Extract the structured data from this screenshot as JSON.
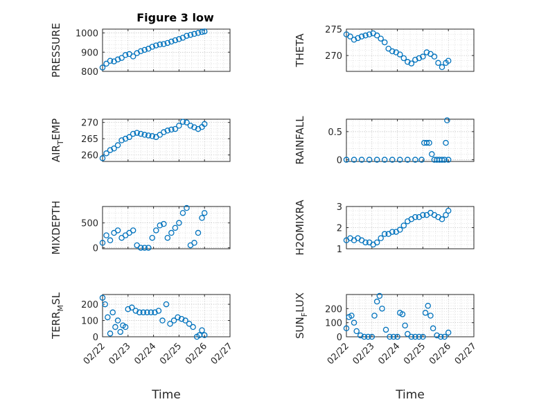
{
  "figure_title": "Figure 3 low",
  "colors": {
    "marker": "#0072BD",
    "axis": "#262626",
    "grid": "#b0b0b0"
  },
  "chart_data": [
    {
      "type": "scatter",
      "id": "pressure",
      "ylabel": "PRESSURE",
      "ylabel_base": "PRESSURE",
      "ylabel_sub": "",
      "ylabel_rest": "",
      "title": "Figure 3 low",
      "xlim": [
        0,
        5
      ],
      "ylim": [
        800,
        1020
      ],
      "yticks": [
        800,
        900,
        1000
      ],
      "ytick_labels": [
        "800",
        "900",
        "1000"
      ],
      "xtick_labels": [],
      "xlabel": "",
      "x": [
        0.0,
        0.15,
        0.3,
        0.45,
        0.6,
        0.75,
        0.9,
        1.05,
        1.2,
        1.35,
        1.5,
        1.65,
        1.8,
        1.95,
        2.1,
        2.25,
        2.4,
        2.55,
        2.7,
        2.85,
        3.0,
        3.15,
        3.3,
        3.45,
        3.6,
        3.75,
        3.9,
        4.0
      ],
      "y": [
        820,
        840,
        855,
        852,
        862,
        870,
        885,
        890,
        878,
        895,
        905,
        912,
        918,
        928,
        935,
        940,
        942,
        948,
        955,
        962,
        968,
        975,
        985,
        990,
        995,
        1000,
        1005,
        1008
      ]
    },
    {
      "type": "scatter",
      "id": "theta",
      "ylabel": "THETA",
      "ylabel_base": "THETA",
      "ylabel_sub": "",
      "ylabel_rest": "",
      "xlim": [
        0,
        5
      ],
      "ylim": [
        267,
        275
      ],
      "yticks": [
        270,
        275
      ],
      "ytick_labels": [
        "270",
        "275"
      ],
      "xtick_labels": [],
      "xlabel": "",
      "x": [
        0.0,
        0.15,
        0.3,
        0.45,
        0.6,
        0.75,
        0.9,
        1.05,
        1.2,
        1.35,
        1.5,
        1.65,
        1.8,
        1.95,
        2.1,
        2.25,
        2.4,
        2.55,
        2.7,
        2.85,
        3.0,
        3.15,
        3.3,
        3.45,
        3.6,
        3.75,
        3.9,
        4.0
      ],
      "y": [
        274,
        273.6,
        273,
        273.3,
        273.6,
        273.8,
        274,
        274.2,
        273.8,
        273.2,
        272.5,
        271.3,
        270.8,
        270.6,
        270.2,
        269.5,
        268.8,
        268.5,
        269.2,
        269.5,
        269.8,
        270.6,
        270.3,
        269.8,
        268.6,
        267.8,
        268.6,
        269
      ]
    },
    {
      "type": "scatter",
      "id": "air_temp",
      "ylabel": "AIR_TEMP",
      "ylabel_base": "AIR",
      "ylabel_sub": "T",
      "ylabel_rest": "EMP",
      "xlim": [
        0,
        5
      ],
      "ylim": [
        258,
        271
      ],
      "yticks": [
        260,
        265,
        270
      ],
      "ytick_labels": [
        "260",
        "265",
        "270"
      ],
      "xtick_labels": [],
      "xlabel": "",
      "x": [
        0.0,
        0.15,
        0.3,
        0.45,
        0.6,
        0.75,
        0.9,
        1.05,
        1.2,
        1.35,
        1.5,
        1.65,
        1.8,
        1.95,
        2.1,
        2.25,
        2.4,
        2.55,
        2.7,
        2.85,
        3.0,
        3.15,
        3.3,
        3.45,
        3.6,
        3.75,
        3.9,
        4.0
      ],
      "y": [
        259,
        260.5,
        261.5,
        262,
        263,
        264.5,
        265,
        265.5,
        266.5,
        266.8,
        266.5,
        266.2,
        266,
        265.8,
        265.5,
        266.2,
        267,
        267.5,
        267.8,
        268,
        269,
        270.2,
        270,
        269,
        268.5,
        268,
        268.6,
        269.5
      ]
    },
    {
      "type": "scatter",
      "id": "rainfall",
      "ylabel": "RAINFALL",
      "ylabel_base": "RAINFALL",
      "ylabel_sub": "",
      "ylabel_rest": "",
      "xlim": [
        0,
        5
      ],
      "ylim": [
        -0.03,
        0.72
      ],
      "yticks": [
        0,
        0.5
      ],
      "ytick_labels": [
        "0",
        "0.5"
      ],
      "xtick_labels": [],
      "xlabel": "",
      "x": [
        0.0,
        0.3,
        0.6,
        0.9,
        1.2,
        1.5,
        1.8,
        2.1,
        2.4,
        2.7,
        2.95,
        3.05,
        3.15,
        3.25,
        3.35,
        3.45,
        3.55,
        3.65,
        3.75,
        3.85,
        3.9,
        3.95,
        4.0
      ],
      "y": [
        0,
        0,
        0,
        0,
        0,
        0,
        0,
        0,
        0,
        0,
        0,
        0.3,
        0.3,
        0.3,
        0.1,
        0,
        0,
        0,
        0,
        0,
        0.3,
        0.7,
        0
      ]
    },
    {
      "type": "scatter",
      "id": "mixdepth",
      "ylabel": "MIXDEPTH",
      "ylabel_base": "MIXDEPTH",
      "ylabel_sub": "",
      "ylabel_rest": "",
      "xlim": [
        0,
        5
      ],
      "ylim": [
        -20,
        830
      ],
      "yticks": [
        0,
        500
      ],
      "ytick_labels": [
        "0",
        "500"
      ],
      "xtick_labels": [],
      "xlabel": "",
      "x": [
        0.0,
        0.15,
        0.3,
        0.45,
        0.6,
        0.75,
        0.9,
        1.05,
        1.2,
        1.35,
        1.5,
        1.65,
        1.8,
        1.95,
        2.1,
        2.25,
        2.4,
        2.55,
        2.7,
        2.85,
        3.0,
        3.15,
        3.3,
        3.45,
        3.6,
        3.75,
        3.9,
        4.0
      ],
      "y": [
        100,
        250,
        150,
        300,
        350,
        200,
        250,
        300,
        350,
        50,
        0,
        0,
        0,
        200,
        350,
        450,
        480,
        200,
        300,
        400,
        500,
        700,
        800,
        50,
        100,
        300,
        600,
        700
      ]
    },
    {
      "type": "scatter",
      "id": "h2omixra",
      "ylabel": "H2OMIXRA",
      "ylabel_base": "H2OMIXRA",
      "ylabel_sub": "",
      "ylabel_rest": "",
      "xlim": [
        0,
        5
      ],
      "ylim": [
        1,
        3
      ],
      "yticks": [
        1,
        2,
        3
      ],
      "ytick_labels": [
        "1",
        "2",
        "3"
      ],
      "xtick_labels": [],
      "xlabel": "",
      "x": [
        0.0,
        0.15,
        0.3,
        0.45,
        0.6,
        0.75,
        0.9,
        1.05,
        1.2,
        1.35,
        1.5,
        1.65,
        1.8,
        1.95,
        2.1,
        2.25,
        2.4,
        2.55,
        2.7,
        2.85,
        3.0,
        3.15,
        3.3,
        3.45,
        3.6,
        3.75,
        3.9,
        4.0
      ],
      "y": [
        1.4,
        1.5,
        1.4,
        1.5,
        1.4,
        1.3,
        1.3,
        1.2,
        1.3,
        1.5,
        1.7,
        1.7,
        1.8,
        1.8,
        1.9,
        2.1,
        2.3,
        2.4,
        2.5,
        2.5,
        2.6,
        2.6,
        2.7,
        2.6,
        2.5,
        2.4,
        2.6,
        2.8
      ]
    },
    {
      "type": "scatter",
      "id": "terr_msl",
      "ylabel": "TERR_MSL",
      "ylabel_base": "TERR",
      "ylabel_sub": "M",
      "ylabel_rest": "SL",
      "xlim": [
        0,
        5
      ],
      "ylim": [
        0,
        260
      ],
      "yticks": [
        0,
        100,
        200
      ],
      "ytick_labels": [
        "0",
        "100",
        "200"
      ],
      "xtick_labels": [
        "02/22",
        "02/23",
        "02/24",
        "02/25",
        "02/26",
        "02/27"
      ],
      "xlabel": "Time",
      "x": [
        0.0,
        0.1,
        0.2,
        0.3,
        0.4,
        0.5,
        0.6,
        0.7,
        0.8,
        0.9,
        1.0,
        1.15,
        1.3,
        1.45,
        1.6,
        1.75,
        1.9,
        2.05,
        2.2,
        2.35,
        2.5,
        2.65,
        2.8,
        2.95,
        3.1,
        3.25,
        3.4,
        3.55,
        3.7,
        3.8,
        3.9,
        4.0
      ],
      "y": [
        240,
        200,
        120,
        20,
        150,
        60,
        100,
        30,
        70,
        60,
        170,
        180,
        160,
        150,
        150,
        150,
        150,
        150,
        160,
        100,
        200,
        80,
        100,
        120,
        110,
        100,
        80,
        60,
        0,
        10,
        40,
        10
      ]
    },
    {
      "type": "scatter",
      "id": "sun_flux",
      "ylabel": "SUN_FLUX",
      "ylabel_base": "SUN",
      "ylabel_sub": "F",
      "ylabel_rest": "LUX",
      "xlim": [
        0,
        5
      ],
      "ylim": [
        0,
        300
      ],
      "yticks": [
        0,
        100,
        200
      ],
      "ytick_labels": [
        "0",
        "100",
        "200"
      ],
      "xtick_labels": [
        "02/22",
        "02/23",
        "02/24",
        "02/25",
        "02/26",
        "02/27"
      ],
      "xlabel": "Time",
      "x": [
        0.0,
        0.1,
        0.2,
        0.3,
        0.4,
        0.55,
        0.7,
        0.85,
        1.0,
        1.1,
        1.2,
        1.3,
        1.4,
        1.55,
        1.7,
        1.85,
        2.0,
        2.1,
        2.2,
        2.3,
        2.4,
        2.55,
        2.7,
        2.85,
        3.0,
        3.1,
        3.2,
        3.3,
        3.4,
        3.55,
        3.7,
        3.85,
        4.0
      ],
      "y": [
        60,
        140,
        150,
        100,
        40,
        10,
        0,
        0,
        0,
        150,
        250,
        290,
        200,
        50,
        0,
        0,
        0,
        170,
        160,
        80,
        20,
        0,
        0,
        0,
        0,
        170,
        220,
        150,
        60,
        10,
        0,
        0,
        30
      ]
    }
  ]
}
